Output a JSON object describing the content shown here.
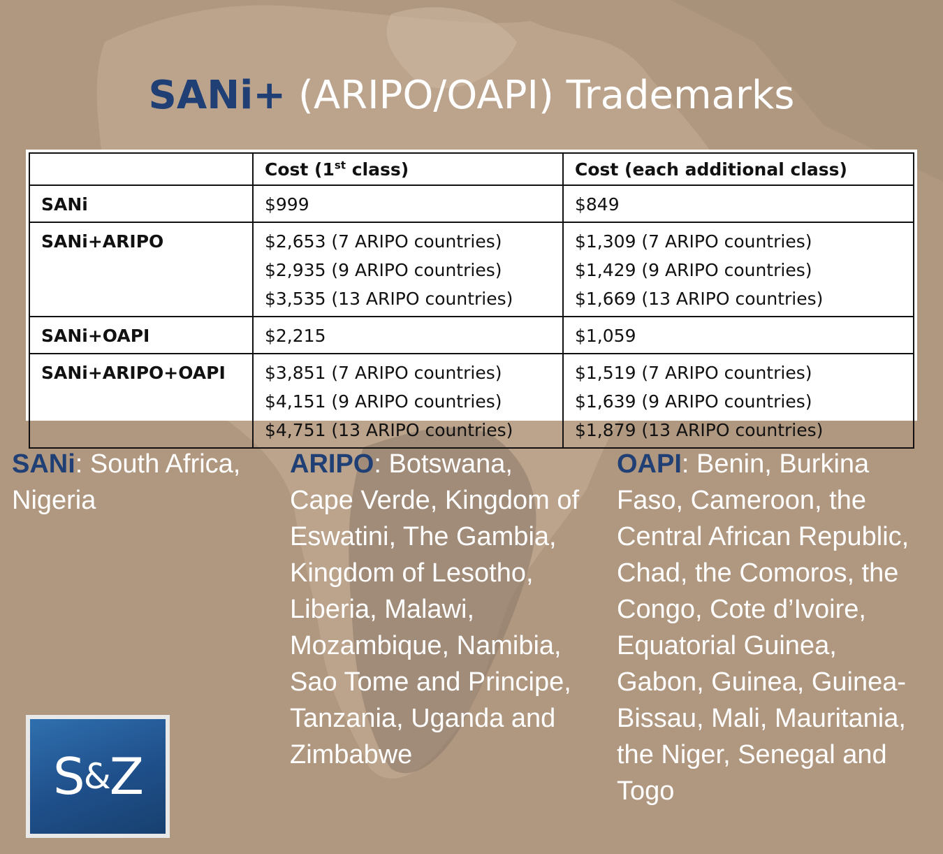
{
  "title": {
    "brand": "SANi+",
    "rest": " (ARIPO/OAPI) Trademarks"
  },
  "table": {
    "headers": [
      "",
      "Cost (1",
      "st",
      " class)",
      "Cost (each additional class)"
    ],
    "rows": [
      {
        "label": "SANi",
        "first": [
          "$999"
        ],
        "additional": [
          "$849"
        ]
      },
      {
        "label": "SANi+ARIPO",
        "first": [
          "$2,653 (7 ARIPO countries)",
          "$2,935 (9 ARIPO countries)",
          "$3,535 (13 ARIPO countries)"
        ],
        "additional": [
          "$1,309 (7 ARIPO countries)",
          "$1,429 (9 ARIPO countries)",
          "$1,669 (13 ARIPO countries)"
        ]
      },
      {
        "label": "SANi+OAPI",
        "first": [
          "$2,215"
        ],
        "additional": [
          "$1,059"
        ]
      },
      {
        "label": "SANi+ARIPO+OAPI",
        "first": [
          "$3,851 (7 ARIPO countries)",
          "$4,151 (9 ARIPO countries)",
          "$4,751 (13 ARIPO countries)"
        ],
        "additional": [
          "$1,519 (7 ARIPO countries)",
          "$1,639 (9 ARIPO countries)",
          "$1,879 (13 ARIPO countries)"
        ]
      }
    ]
  },
  "lists": {
    "sani": {
      "key": "SANi",
      "text": ": South Africa, Nigeria"
    },
    "aripo": {
      "key": "ARIPO",
      "text": ": Botswana, Cape Verde, Kingdom of Eswatini, The Gambia, Kingdom of Lesotho, Liberia, Malawi, Mozambique, Namibia, Sao Tome and Principe, Tanzania, Uganda and Zimbabwe"
    },
    "oapi": {
      "key": "OAPI",
      "text": ": Benin, Burkina Faso, Cameroon, the Central African Republic, Chad, the Comoros, the Congo, Cote d’Ivoire, Equatorial Guinea, Gabon, Guinea, Guinea-Bissau, Mali, Mauritania, the Niger, Senegal and Togo"
    }
  },
  "logo": {
    "left": "S",
    "amp": "&",
    "right": "Z"
  },
  "colors": {
    "brand_blue": "#1f3f75",
    "background": "#b09880"
  }
}
